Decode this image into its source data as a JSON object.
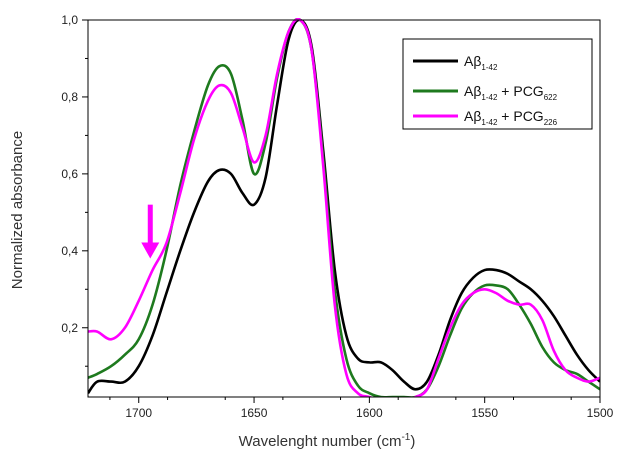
{
  "chart_data": {
    "type": "line",
    "xlabel": "Wavelenght number (cm",
    "xlabel_sup": "-1",
    "xlabel_close": ")",
    "ylabel": "Normalized absorbance",
    "xlim": [
      1722,
      1500
    ],
    "ylim": [
      0.02,
      1.0
    ],
    "x_reversed": true,
    "x_ticks": [
      {
        "value": 1700,
        "label": "1700"
      },
      {
        "value": 1650,
        "label": "1650"
      },
      {
        "value": 1600,
        "label": "1600"
      },
      {
        "value": 1550,
        "label": "1550"
      },
      {
        "value": 1500,
        "label": "1500"
      }
    ],
    "y_ticks": [
      {
        "value": 0.2,
        "label": "0,2"
      },
      {
        "value": 0.4,
        "label": "0,4"
      },
      {
        "value": 0.6,
        "label": "0,6"
      },
      {
        "value": 0.8,
        "label": "0,8"
      },
      {
        "value": 1.0,
        "label": "1,0"
      }
    ],
    "legend_position": "top-right",
    "annotation": {
      "type": "arrow",
      "x": 1695,
      "y_from": 0.52,
      "y_to": 0.38,
      "color": "#ff00ff"
    },
    "series": [
      {
        "legend_main": "Aβ",
        "legend_sub": "1-42",
        "legend_extra": "",
        "legend_extra_sub": "",
        "color": "#000000",
        "x": [
          1722,
          1718,
          1712,
          1706,
          1700,
          1694,
          1688,
          1682,
          1676,
          1670,
          1665,
          1660,
          1655,
          1650,
          1645,
          1640,
          1635,
          1630,
          1625,
          1620,
          1615,
          1610,
          1605,
          1600,
          1595,
          1590,
          1585,
          1580,
          1575,
          1570,
          1565,
          1560,
          1555,
          1550,
          1545,
          1540,
          1535,
          1530,
          1525,
          1520,
          1515,
          1510,
          1505,
          1500
        ],
        "y": [
          0.03,
          0.06,
          0.06,
          0.06,
          0.1,
          0.18,
          0.29,
          0.4,
          0.5,
          0.58,
          0.61,
          0.6,
          0.55,
          0.52,
          0.59,
          0.78,
          0.95,
          1.0,
          0.93,
          0.66,
          0.35,
          0.18,
          0.12,
          0.11,
          0.11,
          0.09,
          0.06,
          0.04,
          0.06,
          0.13,
          0.22,
          0.29,
          0.33,
          0.35,
          0.35,
          0.34,
          0.32,
          0.3,
          0.27,
          0.23,
          0.18,
          0.13,
          0.09,
          0.06
        ]
      },
      {
        "legend_main": "Aβ",
        "legend_sub": "1-42",
        "legend_extra": " + PCG",
        "legend_extra_sub": "622",
        "color": "#1e7a1e",
        "x": [
          1722,
          1718,
          1712,
          1706,
          1700,
          1694,
          1688,
          1682,
          1676,
          1670,
          1665,
          1660,
          1655,
          1650,
          1645,
          1640,
          1635,
          1630,
          1625,
          1620,
          1615,
          1610,
          1605,
          1600,
          1595,
          1590,
          1585,
          1580,
          1575,
          1570,
          1565,
          1560,
          1555,
          1550,
          1545,
          1540,
          1535,
          1530,
          1525,
          1520,
          1515,
          1510,
          1505,
          1500
        ],
        "y": [
          0.07,
          0.08,
          0.1,
          0.13,
          0.17,
          0.26,
          0.4,
          0.57,
          0.71,
          0.83,
          0.88,
          0.86,
          0.74,
          0.6,
          0.68,
          0.85,
          0.97,
          1.0,
          0.92,
          0.64,
          0.3,
          0.12,
          0.05,
          0.03,
          0.02,
          0.02,
          0.02,
          0.02,
          0.04,
          0.1,
          0.18,
          0.25,
          0.29,
          0.31,
          0.31,
          0.3,
          0.26,
          0.21,
          0.15,
          0.11,
          0.09,
          0.08,
          0.06,
          0.04
        ]
      },
      {
        "legend_main": "Aβ",
        "legend_sub": "1-42",
        "legend_extra": " + PCG",
        "legend_extra_sub": "226",
        "color": "#ff00ff",
        "x": [
          1722,
          1718,
          1712,
          1706,
          1700,
          1694,
          1688,
          1682,
          1676,
          1670,
          1665,
          1660,
          1655,
          1650,
          1645,
          1640,
          1635,
          1630,
          1625,
          1620,
          1615,
          1610,
          1605,
          1600,
          1595,
          1590,
          1585,
          1580,
          1575,
          1570,
          1565,
          1560,
          1555,
          1550,
          1545,
          1540,
          1535,
          1530,
          1525,
          1520,
          1515,
          1510,
          1505,
          1500
        ],
        "y": [
          0.19,
          0.19,
          0.17,
          0.2,
          0.27,
          0.35,
          0.42,
          0.55,
          0.69,
          0.79,
          0.83,
          0.81,
          0.72,
          0.63,
          0.7,
          0.86,
          0.97,
          1.0,
          0.92,
          0.62,
          0.26,
          0.08,
          0.03,
          0.02,
          0.01,
          0.01,
          0.01,
          0.02,
          0.04,
          0.12,
          0.2,
          0.26,
          0.29,
          0.3,
          0.29,
          0.27,
          0.26,
          0.26,
          0.22,
          0.14,
          0.09,
          0.07,
          0.06,
          0.07
        ]
      }
    ]
  }
}
